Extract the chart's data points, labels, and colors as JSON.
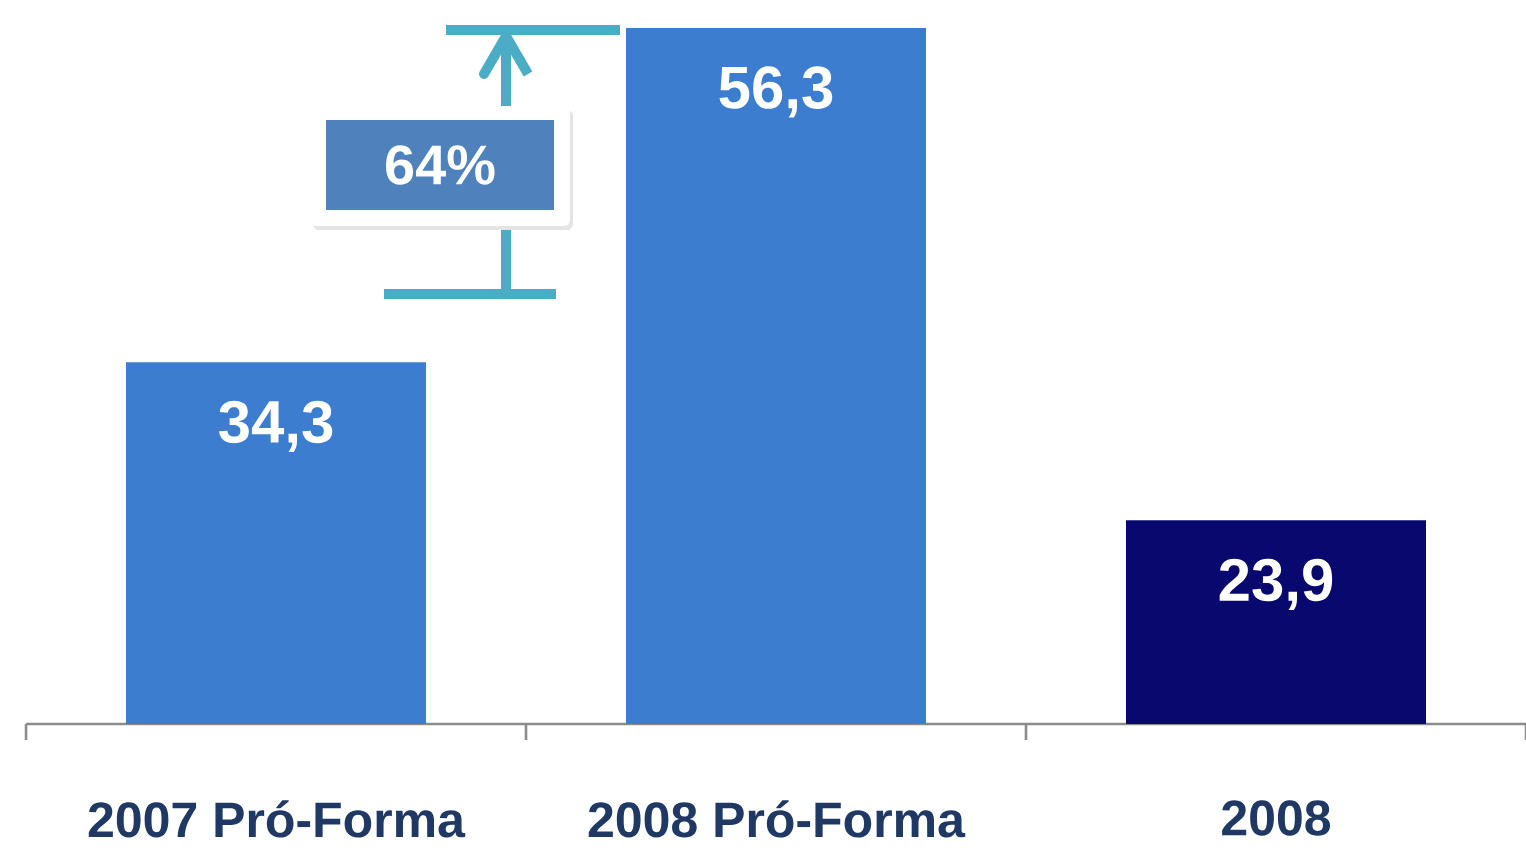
{
  "chart_data": {
    "type": "bar",
    "categories": [
      "2007 Pró-Forma",
      "2008  Pró-Forma",
      "2008"
    ],
    "values": [
      34.3,
      56.3,
      23.9
    ],
    "value_labels": [
      "34,3",
      "56,3",
      "23,9"
    ],
    "colors": [
      "#3c7dcf",
      "#3c7dcf",
      "#08086e"
    ],
    "ylim": [
      10.5,
      56.3
    ],
    "annotations": [
      "64%"
    ]
  }
}
